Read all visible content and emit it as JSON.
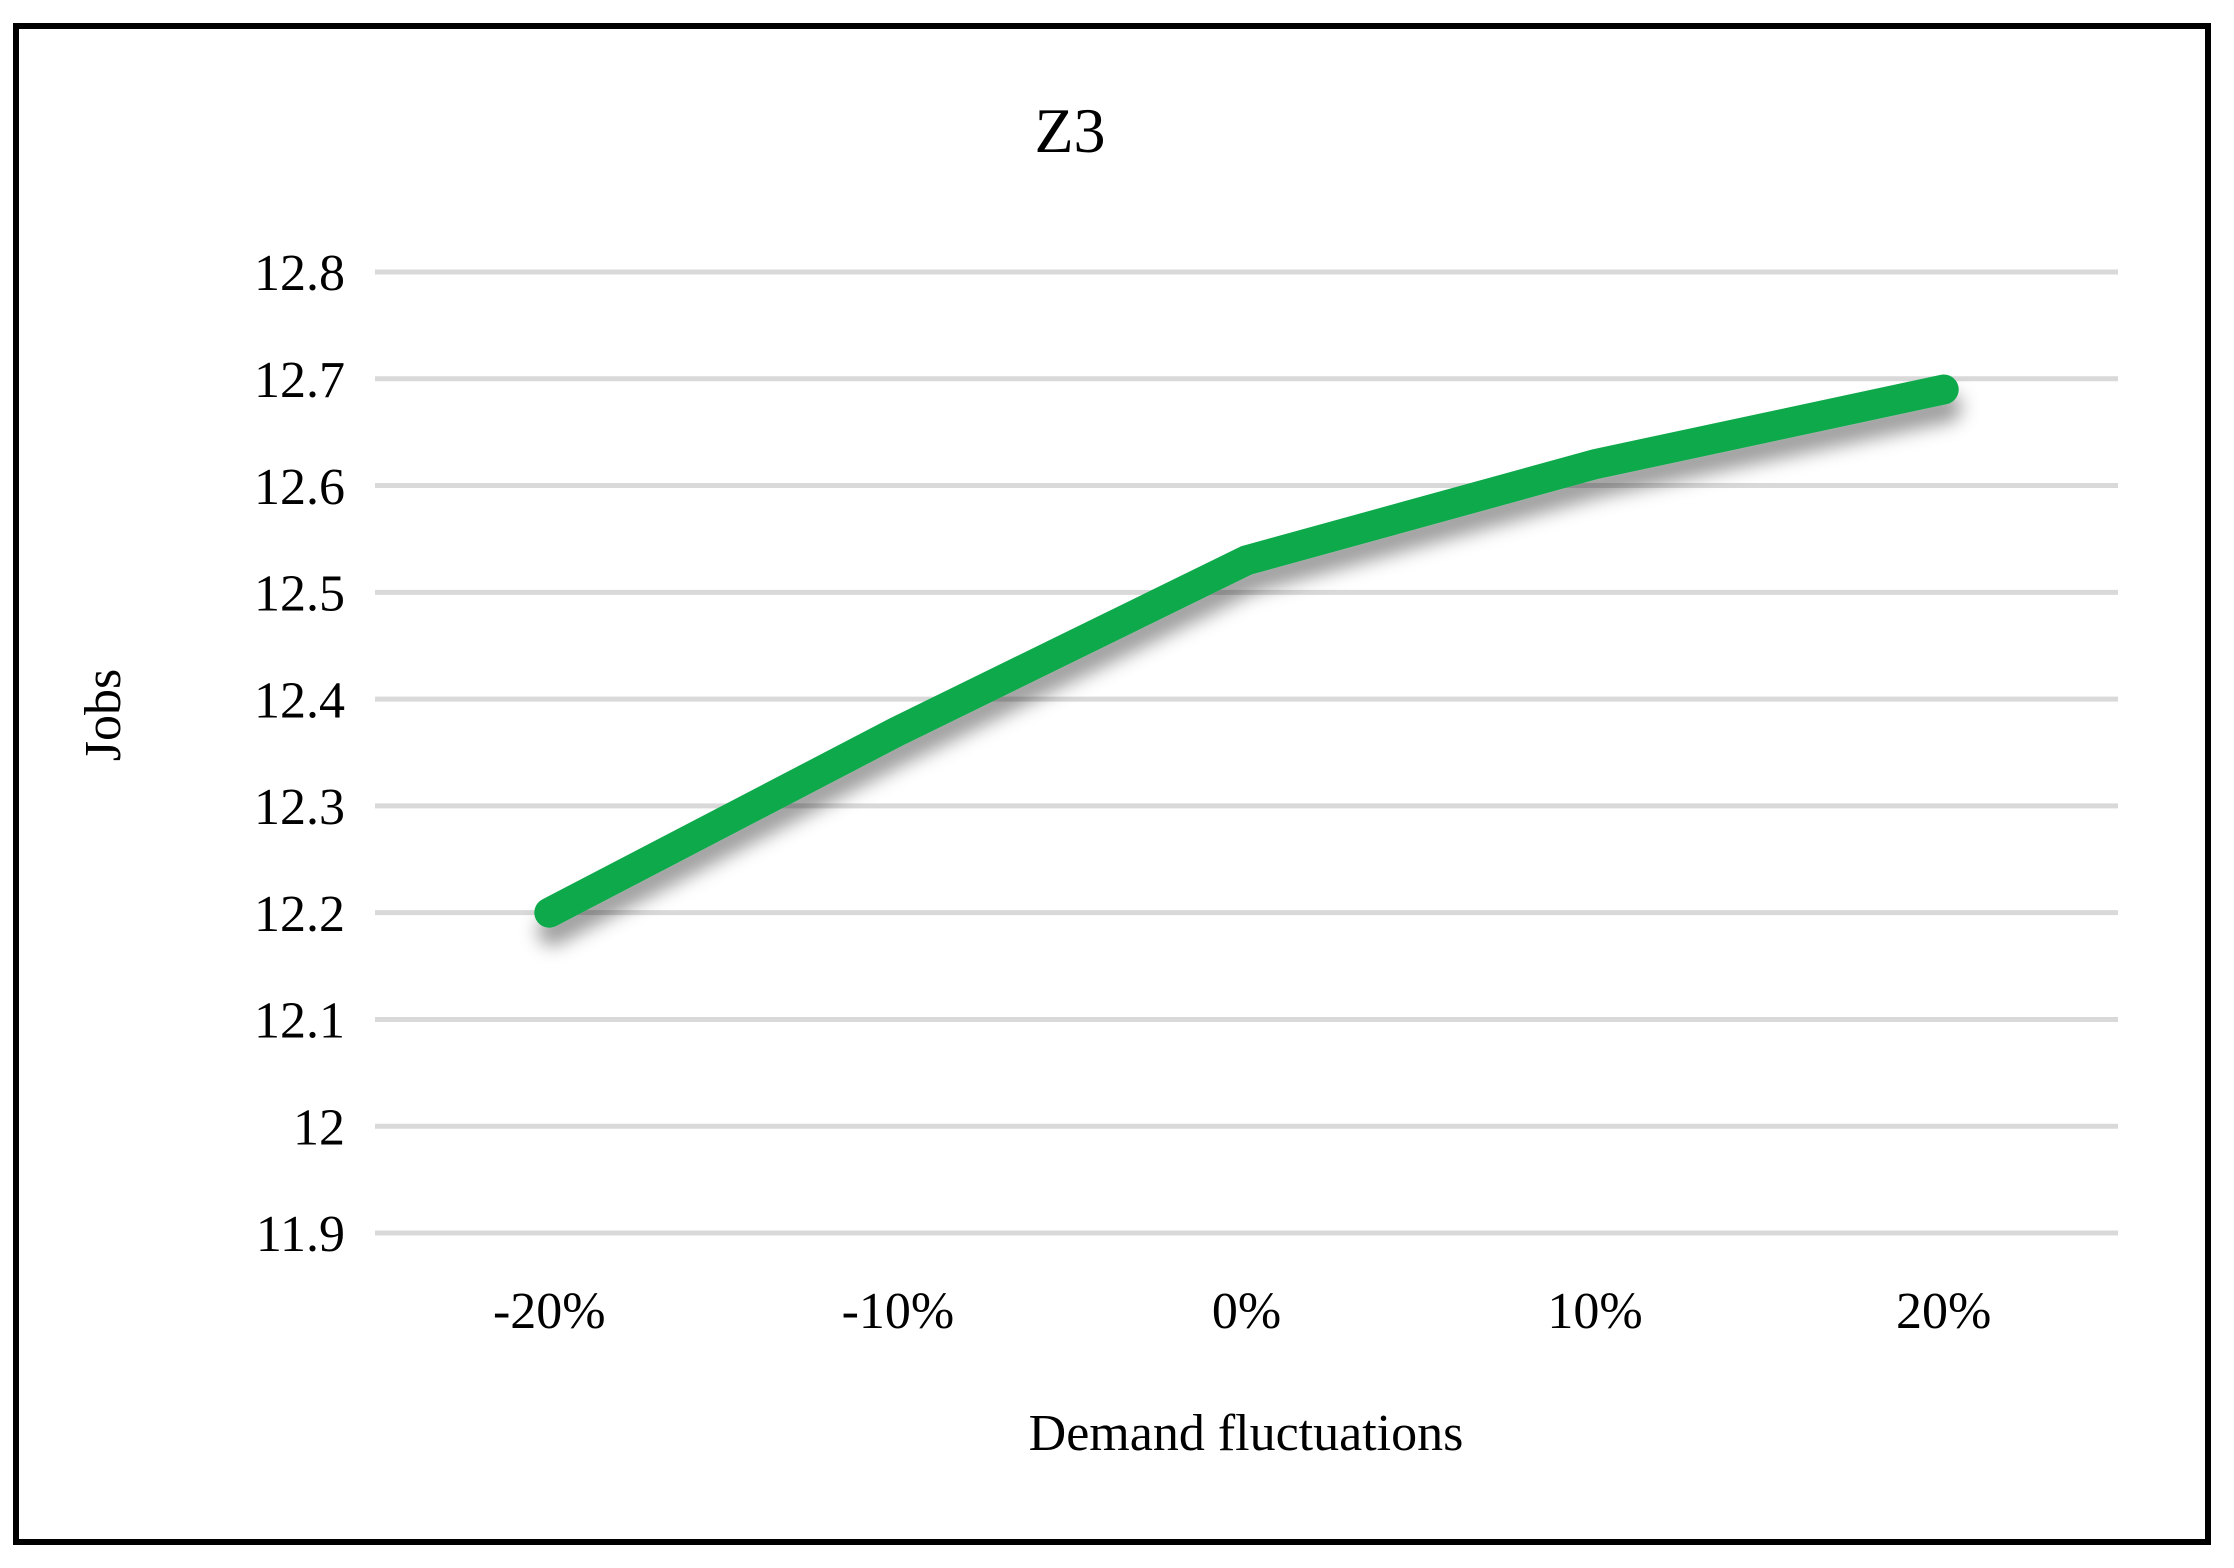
{
  "figure": {
    "background": "#ffffff",
    "border_color": "#000000"
  },
  "chart_data": {
    "type": "line",
    "title": "Z3",
    "xlabel": "Demand fluctuations",
    "ylabel": "Jobs",
    "categories": [
      "-20%",
      "-10%",
      "0%",
      "10%",
      "20%"
    ],
    "series": [
      {
        "name": "Z3",
        "values": [
          12.2,
          12.37,
          12.53,
          12.62,
          12.69
        ],
        "color": "#0DA94B",
        "line_width": 30,
        "shadow": true
      }
    ],
    "ylim": [
      11.9,
      12.8
    ],
    "ytick_step": 0.1,
    "ytick_labels": [
      "11.9",
      "12",
      "12.1",
      "12.2",
      "12.3",
      "12.4",
      "12.5",
      "12.6",
      "12.7",
      "12.8"
    ],
    "grid": "horizontal",
    "gridline_color": "#D9D9D9",
    "legend": "none"
  }
}
